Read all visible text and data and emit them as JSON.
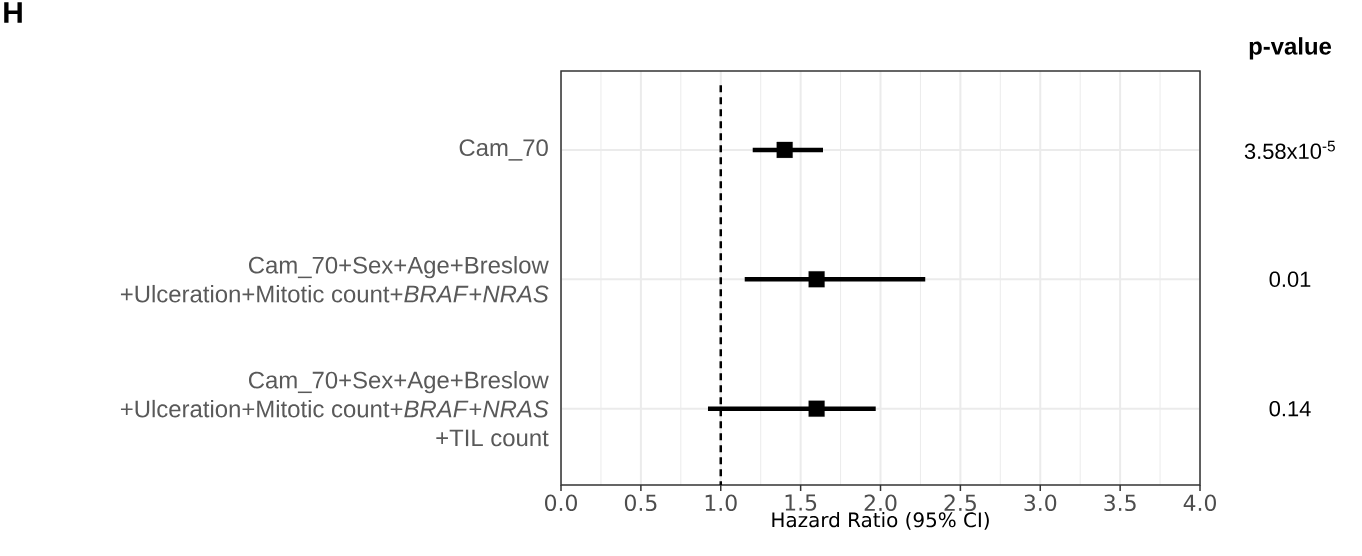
{
  "chart_data": {
    "type": "scatter",
    "title": "H",
    "orientation": "horizontal",
    "categories": [
      "Cam_70",
      "Cam_70+Sex+Age+Breslow\n+Ulceration+Mitotic count+*BRAF*+*NRAS*",
      "Cam_70+Sex+Age+Breslow\n+Ulceration+Mitotic count+*BRAF*+*NRAS*\n+TIL count"
    ],
    "values": [
      1.4,
      1.6,
      1.6
    ],
    "errors": [
      [
        1.2,
        1.64
      ],
      [
        1.15,
        2.28
      ],
      [
        0.92,
        1.97
      ]
    ],
    "color": "#000000",
    "marker": "square",
    "xlabel": "Hazard Ratio (95% CI)",
    "xlim": [
      0,
      4
    ],
    "xticks": [
      {
        "value": 0,
        "label": "0.0"
      },
      {
        "value": 0.5,
        "label": "0.5"
      },
      {
        "value": 1,
        "label": "1.0"
      },
      {
        "value": 1.5,
        "label": "1.5"
      },
      {
        "value": 2,
        "label": "2.0"
      },
      {
        "value": 2.5,
        "label": "2.5"
      },
      {
        "value": 3,
        "label": "3.0"
      },
      {
        "value": 3.5,
        "label": "3.5"
      },
      {
        "value": 4,
        "label": "4.0"
      }
    ],
    "grid": true,
    "ref_lines": [
      {
        "axis": "x",
        "value": 1,
        "line_style": "dashed",
        "color": "#000000"
      }
    ],
    "annotations": [
      "p-value",
      "3.58x10$^{-5}$",
      "0.01",
      "0.14"
    ]
  }
}
